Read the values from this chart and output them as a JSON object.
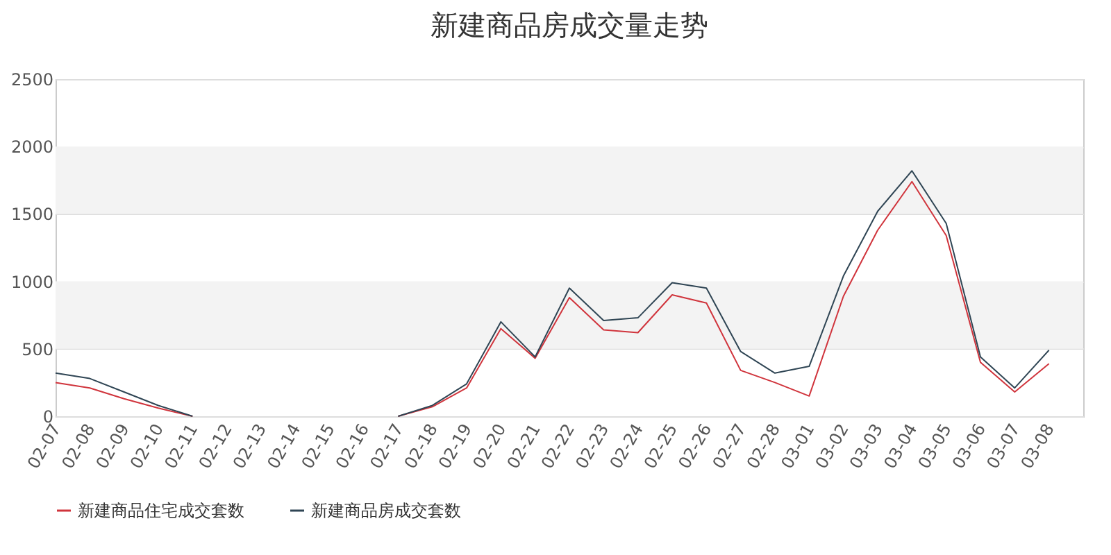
{
  "chart_data": {
    "type": "line",
    "title": "新建商品房成交量走势",
    "categories": [
      "02-07",
      "02-08",
      "02-09",
      "02-10",
      "02-11",
      "02-12",
      "02-13",
      "02-14",
      "02-15",
      "02-16",
      "02-17",
      "02-18",
      "02-19",
      "02-20",
      "02-21",
      "02-22",
      "02-23",
      "02-24",
      "02-25",
      "02-26",
      "02-27",
      "02-28",
      "03-01",
      "03-02",
      "03-03",
      "03-04",
      "03-05",
      "03-06",
      "03-07",
      "03-08"
    ],
    "series": [
      {
        "name": "新建商品住宅成交套数",
        "color": "#d0343c",
        "values": [
          250,
          210,
          130,
          60,
          0,
          null,
          null,
          null,
          null,
          null,
          0,
          70,
          210,
          650,
          430,
          880,
          640,
          620,
          900,
          840,
          340,
          250,
          150,
          890,
          1380,
          1740,
          1340,
          400,
          180,
          390
        ]
      },
      {
        "name": "新建商品房成交套数",
        "color": "#2f4554",
        "values": [
          320,
          280,
          180,
          80,
          0,
          null,
          null,
          null,
          null,
          null,
          0,
          80,
          240,
          700,
          440,
          950,
          710,
          730,
          990,
          950,
          480,
          320,
          370,
          1040,
          1520,
          1820,
          1430,
          440,
          210,
          490
        ]
      }
    ],
    "ylim": [
      0,
      2500
    ],
    "yticks": [
      0,
      500,
      1000,
      1500,
      2000,
      2500
    ],
    "grid": "y",
    "legend": "bottom",
    "marker": "none",
    "line_style": "solid",
    "bands": [
      {
        "axis": "y",
        "from": 500,
        "to": 1000,
        "color": "#f3f3f3"
      },
      {
        "axis": "y",
        "from": 1500,
        "to": 2000,
        "color": "#f3f3f3"
      }
    ]
  }
}
